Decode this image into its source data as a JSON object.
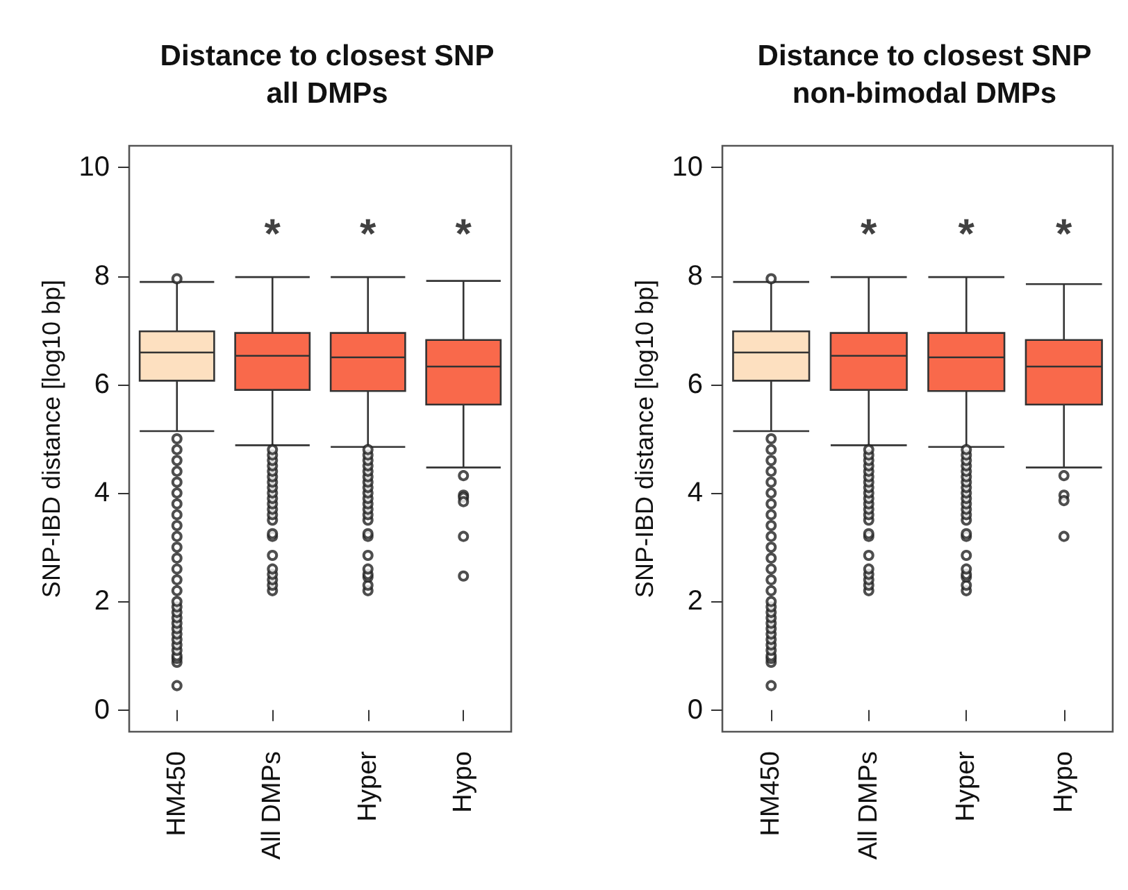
{
  "chart_data": [
    {
      "type": "box",
      "title": "Distance to closest SNP",
      "subtitle": "all DMPs",
      "ylabel": "SNP-IBD distance [log10 bp]",
      "categories": [
        "HM450",
        "All DMPs",
        "Hyper",
        "Hypo"
      ],
      "colors": [
        "#fde0c0",
        "#f9694b",
        "#f9694b",
        "#f9694b"
      ],
      "ylim": [
        -0.4,
        10.4
      ],
      "yticks": [
        0,
        2,
        4,
        6,
        8,
        10
      ],
      "grid": false,
      "boxes": [
        {
          "low": 5.14,
          "q1": 6.07,
          "median": 6.59,
          "q3": 6.98,
          "high": 7.89,
          "outliers": [
            0.45,
            0.88,
            0.95,
            1.0,
            1.1,
            1.2,
            1.3,
            1.4,
            1.5,
            1.6,
            1.7,
            1.8,
            1.9,
            2.0,
            2.2,
            2.4,
            2.6,
            2.8,
            3.0,
            3.2,
            3.4,
            3.6,
            3.8,
            4.0,
            4.2,
            4.4,
            4.6,
            4.8,
            5.0,
            7.95
          ]
        },
        {
          "low": 4.88,
          "q1": 5.9,
          "median": 6.53,
          "q3": 6.95,
          "high": 7.98,
          "outliers": [
            2.2,
            2.3,
            2.4,
            2.5,
            2.6,
            2.85,
            3.2,
            3.25,
            3.5,
            3.6,
            3.7,
            3.8,
            3.9,
            4.0,
            4.1,
            4.2,
            4.3,
            4.4,
            4.5,
            4.6,
            4.7,
            4.8
          ]
        },
        {
          "low": 4.85,
          "q1": 5.88,
          "median": 6.5,
          "q3": 6.95,
          "high": 7.98,
          "outliers": [
            2.2,
            2.3,
            2.45,
            2.5,
            2.6,
            2.85,
            3.2,
            3.25,
            3.5,
            3.6,
            3.7,
            3.8,
            3.9,
            4.0,
            4.1,
            4.2,
            4.3,
            4.4,
            4.5,
            4.6,
            4.7,
            4.8
          ]
        },
        {
          "low": 4.47,
          "q1": 5.63,
          "median": 6.33,
          "q3": 6.82,
          "high": 7.91,
          "outliers": [
            4.32,
            3.96,
            3.92,
            3.84,
            3.2,
            2.47
          ]
        }
      ],
      "annotations": [
        "*",
        "*",
        "*"
      ]
    },
    {
      "type": "box",
      "title": "Distance to closest SNP",
      "subtitle": "non-bimodal DMPs",
      "ylabel": "SNP-IBD distance [log10 bp]",
      "categories": [
        "HM450",
        "All DMPs",
        "Hyper",
        "Hypo"
      ],
      "colors": [
        "#fde0c0",
        "#f9694b",
        "#f9694b",
        "#f9694b"
      ],
      "ylim": [
        -0.4,
        10.4
      ],
      "yticks": [
        0,
        2,
        4,
        6,
        8,
        10
      ],
      "grid": false,
      "boxes": [
        {
          "low": 5.14,
          "q1": 6.07,
          "median": 6.59,
          "q3": 6.98,
          "high": 7.89,
          "outliers": [
            0.45,
            0.88,
            0.95,
            1.0,
            1.1,
            1.2,
            1.3,
            1.4,
            1.5,
            1.6,
            1.7,
            1.8,
            1.9,
            2.0,
            2.2,
            2.4,
            2.6,
            2.8,
            3.0,
            3.2,
            3.4,
            3.6,
            3.8,
            4.0,
            4.2,
            4.4,
            4.6,
            4.8,
            5.0,
            7.95
          ]
        },
        {
          "low": 4.88,
          "q1": 5.9,
          "median": 6.53,
          "q3": 6.95,
          "high": 7.98,
          "outliers": [
            2.2,
            2.3,
            2.4,
            2.5,
            2.6,
            2.85,
            3.2,
            3.25,
            3.5,
            3.6,
            3.7,
            3.8,
            3.9,
            4.0,
            4.1,
            4.2,
            4.3,
            4.4,
            4.5,
            4.6,
            4.7,
            4.8
          ]
        },
        {
          "low": 4.85,
          "q1": 5.88,
          "median": 6.5,
          "q3": 6.95,
          "high": 7.98,
          "outliers": [
            2.2,
            2.3,
            2.45,
            2.5,
            2.6,
            2.85,
            3.2,
            3.25,
            3.5,
            3.6,
            3.7,
            3.8,
            3.9,
            4.0,
            4.1,
            4.2,
            4.3,
            4.4,
            4.5,
            4.6,
            4.7,
            4.8
          ]
        },
        {
          "low": 4.47,
          "q1": 5.63,
          "median": 6.33,
          "q3": 6.82,
          "high": 7.85,
          "outliers": [
            4.32,
            3.96,
            3.86,
            3.2
          ]
        }
      ],
      "annotations": [
        "*",
        "*",
        "*"
      ]
    }
  ]
}
